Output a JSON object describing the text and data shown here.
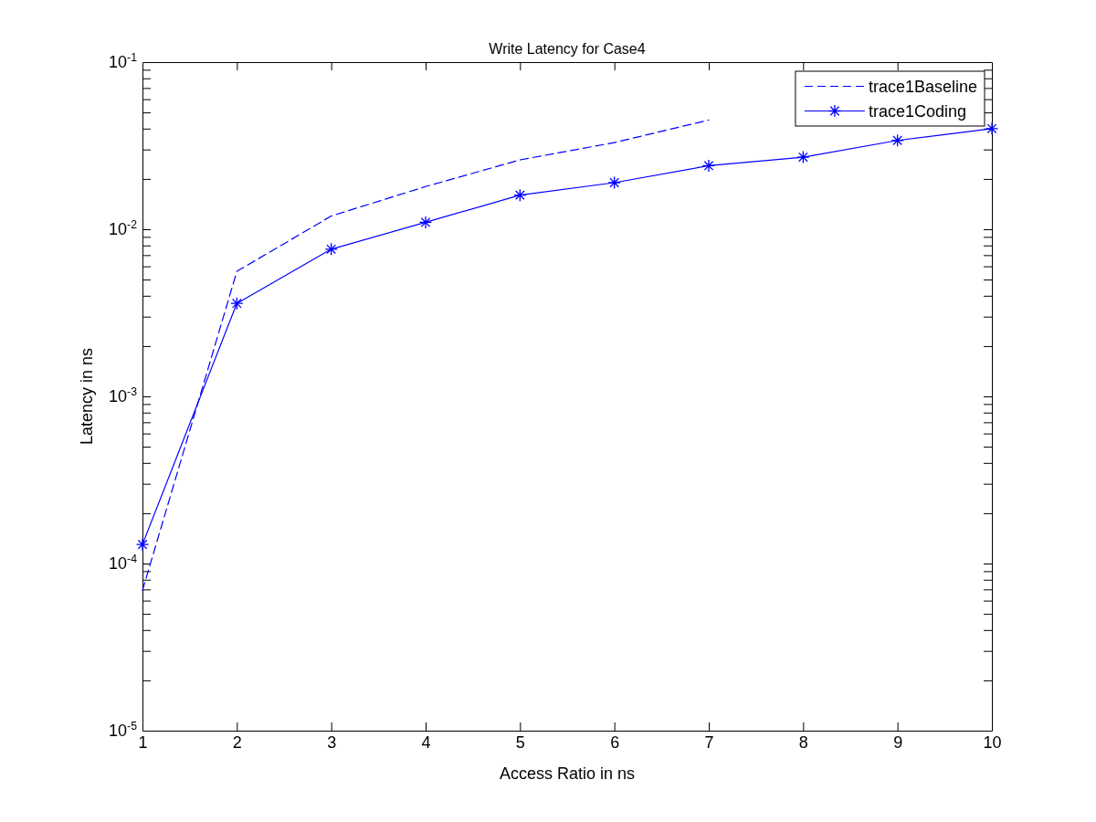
{
  "chart_data": {
    "type": "line",
    "title": "Write Latency for Case4",
    "xlabel": "Access Ratio in ns",
    "ylabel": "Latency in ns",
    "x": [
      1,
      2,
      3,
      4,
      5,
      6,
      7,
      8,
      9,
      10
    ],
    "series": [
      {
        "name": "trace1Baseline",
        "color": "#0000ff",
        "line_style": "dashed",
        "marker": "none",
        "values": [
          6.9e-05,
          0.0056,
          0.012,
          0.018,
          0.026,
          0.033,
          0.045,
          null,
          null,
          null
        ]
      },
      {
        "name": "trace1Coding",
        "color": "#0000ff",
        "line_style": "solid",
        "marker": "cross",
        "values": [
          0.00013,
          0.0036,
          0.0076,
          0.011,
          0.016,
          0.019,
          0.024,
          0.027,
          0.034,
          0.04
        ]
      }
    ],
    "xlim": [
      1,
      10
    ],
    "xticks": [
      1,
      2,
      3,
      4,
      5,
      6,
      7,
      8,
      9,
      10
    ],
    "ylim": [
      1e-05,
      0.1
    ],
    "yticks": [
      {
        "value": 1e-05,
        "label": "10$^{-5}$"
      },
      {
        "value": 2e-05,
        "label": null
      },
      {
        "value": 3e-05,
        "label": null
      },
      {
        "value": 4e-05,
        "label": null
      },
      {
        "value": 5e-05,
        "label": null
      },
      {
        "value": 6e-05,
        "label": null
      },
      {
        "value": 7e-05,
        "label": null
      },
      {
        "value": 8e-05,
        "label": null
      },
      {
        "value": 9e-05,
        "label": null
      },
      {
        "value": 0.0001,
        "label": "10$^{-4}$"
      },
      {
        "value": 0.0002,
        "label": null
      },
      {
        "value": 0.0003,
        "label": null
      },
      {
        "value": 0.0004,
        "label": null
      },
      {
        "value": 0.0005,
        "label": null
      },
      {
        "value": 0.0006,
        "label": null
      },
      {
        "value": 0.0007,
        "label": null
      },
      {
        "value": 0.0008,
        "label": null
      },
      {
        "value": 0.0009,
        "label": null
      },
      {
        "value": 0.001,
        "label": "10$^{-3}$"
      },
      {
        "value": 0.002,
        "label": null
      },
      {
        "value": 0.003,
        "label": null
      },
      {
        "value": 0.004,
        "label": null
      },
      {
        "value": 0.005,
        "label": null
      },
      {
        "value": 0.006,
        "label": null
      },
      {
        "value": 0.007,
        "label": null
      },
      {
        "value": 0.008,
        "label": null
      },
      {
        "value": 0.009,
        "label": null
      },
      {
        "value": 0.01,
        "label": "10$^{-2}$"
      },
      {
        "value": 0.02,
        "label": null
      },
      {
        "value": 0.03,
        "label": null
      },
      {
        "value": 0.04,
        "label": null
      },
      {
        "value": 0.05,
        "label": null
      },
      {
        "value": 0.06,
        "label": null
      },
      {
        "value": 0.07,
        "label": null
      },
      {
        "value": 0.08,
        "label": null
      },
      {
        "value": 0.09,
        "label": null
      },
      {
        "value": 0.1,
        "label": "10$^{-1}$"
      }
    ],
    "log": "y",
    "legend": "top right"
  }
}
